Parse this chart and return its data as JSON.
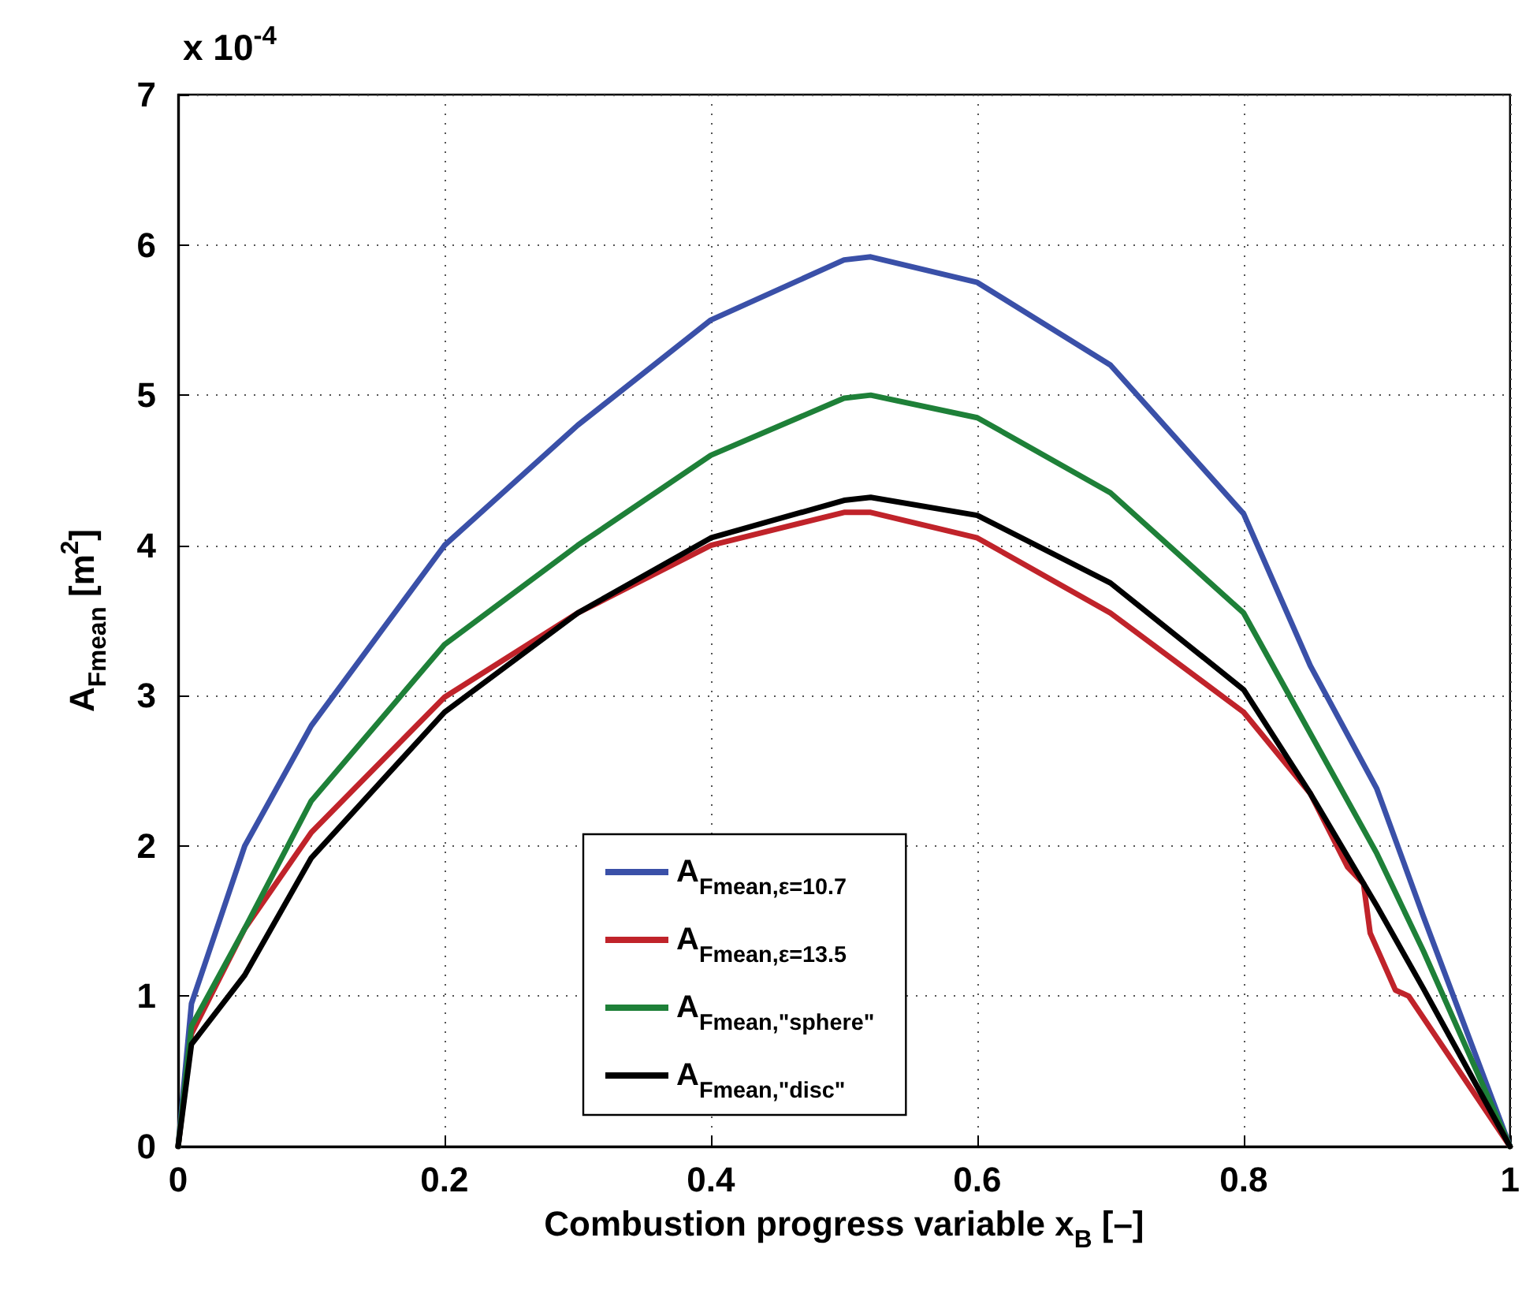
{
  "chart_data": {
    "type": "line",
    "xlabel": "Combustion progress variable x$_{B}$ [–]",
    "ylabel": "A$_{Fmean}$ [m$^{2}$]",
    "annotations": [
      "x 10$^{-4}$"
    ],
    "xlim": [
      0,
      1
    ],
    "xticks": [
      0,
      0.2,
      0.4,
      0.6,
      0.8,
      1
    ],
    "ylim": [
      0,
      7
    ],
    "yticks": [
      0,
      1,
      2,
      3,
      4,
      5,
      6,
      7
    ],
    "grid": true,
    "legend": "bottom",
    "line_style": "solid",
    "marker": "none",
    "x": [
      0,
      0.01,
      0.05,
      0.1,
      0.2,
      0.3,
      0.4,
      0.5,
      0.52,
      0.6,
      0.7,
      0.8,
      0.85,
      0.9,
      0.935,
      1
    ],
    "series": [
      {
        "name": "A$_{Fmean,ε=10.7}$",
        "color": "#3a50a8",
        "values": [
          0,
          0.95,
          2.0,
          2.8,
          4.0,
          4.8,
          5.5,
          5.9,
          5.92,
          5.75,
          5.2,
          4.21,
          3.2,
          2.38,
          1.53,
          0
        ]
      },
      {
        "name": "A$_{Fmean,ε=13.5}$",
        "color": "#c0232a",
        "x": [
          0,
          0.01,
          0.05,
          0.1,
          0.2,
          0.3,
          0.4,
          0.5,
          0.52,
          0.6,
          0.7,
          0.8,
          0.85,
          0.878,
          0.89,
          0.895,
          0.914,
          0.924,
          1
        ],
        "values": [
          0,
          0.75,
          1.45,
          2.09,
          2.99,
          3.55,
          4.0,
          4.22,
          4.22,
          4.05,
          3.55,
          2.89,
          2.35,
          1.86,
          1.75,
          1.42,
          1.04,
          1.0,
          0
        ]
      },
      {
        "name": "A$_{Fmean,\"sphere\"}$",
        "color": "#1e8038",
        "values": [
          0,
          0.8,
          1.45,
          2.3,
          3.34,
          4.0,
          4.6,
          4.98,
          5.0,
          4.85,
          4.35,
          3.55,
          2.75,
          1.95,
          1.3,
          0
        ]
      },
      {
        "name": "A$_{Fmean,\"disc\"}$",
        "color": "#000000",
        "values": [
          0,
          0.68,
          1.14,
          1.92,
          2.89,
          3.55,
          4.05,
          4.3,
          4.32,
          4.2,
          3.75,
          3.04,
          2.35,
          1.6,
          1.05,
          0
        ]
      }
    ]
  }
}
